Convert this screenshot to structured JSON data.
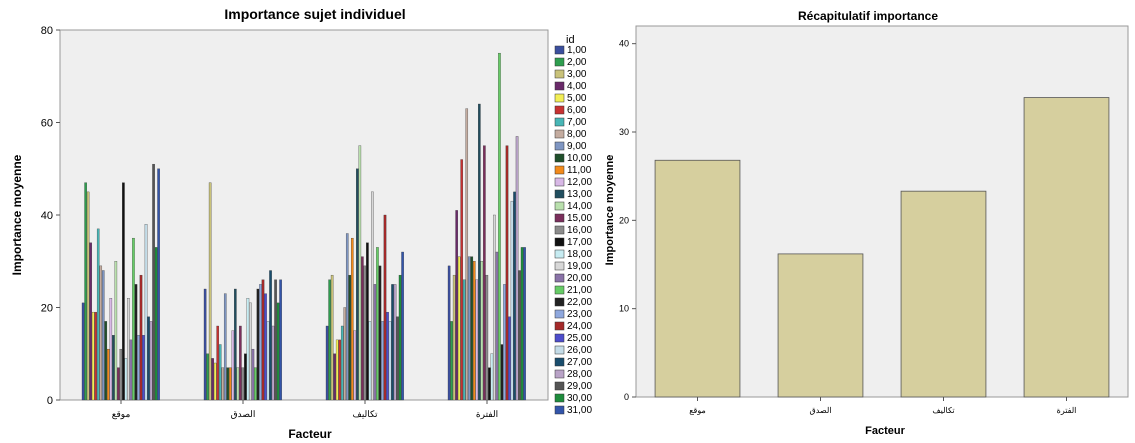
{
  "chart_data": [
    {
      "type": "bar",
      "title": "Importance sujet individuel",
      "xlabel": "Facteur",
      "ylabel": "Importance moyenne",
      "ylim": [
        0,
        80
      ],
      "yticks": [
        0,
        20,
        40,
        60,
        80
      ],
      "categories": [
        "موقع",
        "الصدق",
        "تكاليف",
        "الفترة"
      ],
      "legend_title": "id",
      "legend_position": "right",
      "grid": false,
      "series": [
        {
          "name": "1,00",
          "color": "#3b4f9e",
          "values": [
            21,
            24,
            16,
            29
          ]
        },
        {
          "name": "2,00",
          "color": "#2e9e4f",
          "values": [
            47,
            10,
            26,
            17
          ]
        },
        {
          "name": "3,00",
          "color": "#c9c27a",
          "values": [
            45,
            47,
            27,
            27
          ]
        },
        {
          "name": "4,00",
          "color": "#6a2a6a",
          "values": [
            34,
            9,
            10,
            41
          ]
        },
        {
          "name": "5,00",
          "color": "#f2ee55",
          "values": [
            19,
            8,
            13,
            31
          ]
        },
        {
          "name": "6,00",
          "color": "#c73131",
          "values": [
            19,
            16,
            13,
            52
          ]
        },
        {
          "name": "7,00",
          "color": "#48b6b6",
          "values": [
            37,
            12,
            16,
            26
          ]
        },
        {
          "name": "8,00",
          "color": "#c4aca0",
          "values": [
            29,
            7,
            20,
            63
          ]
        },
        {
          "name": "9,00",
          "color": "#7f96c2",
          "values": [
            28,
            23,
            36,
            31
          ]
        },
        {
          "name": "10,00",
          "color": "#1f4f2a",
          "values": [
            17,
            7,
            27,
            31
          ]
        },
        {
          "name": "11,00",
          "color": "#f28a1b",
          "values": [
            11,
            7,
            35,
            30
          ]
        },
        {
          "name": "12,00",
          "color": "#d8b8e6",
          "values": [
            22,
            15,
            15,
            26
          ]
        },
        {
          "name": "13,00",
          "color": "#214e5f",
          "values": [
            14,
            24,
            50,
            64
          ]
        },
        {
          "name": "14,00",
          "color": "#b9e0ad",
          "values": [
            30,
            7,
            55,
            30
          ]
        },
        {
          "name": "15,00",
          "color": "#7b2e5c",
          "values": [
            7,
            16,
            31,
            55
          ]
        },
        {
          "name": "16,00",
          "color": "#8c8c8c",
          "values": [
            11,
            7,
            29,
            27
          ]
        },
        {
          "name": "17,00",
          "color": "#111111",
          "values": [
            47,
            10,
            34,
            7
          ]
        },
        {
          "name": "18,00",
          "color": "#c7ecf2",
          "values": [
            9,
            22,
            17,
            10
          ]
        },
        {
          "name": "19,00",
          "color": "#d8d8d8",
          "values": [
            22,
            21,
            45,
            40
          ]
        },
        {
          "name": "20,00",
          "color": "#8a73a8",
          "values": [
            13,
            11,
            25,
            32
          ]
        },
        {
          "name": "21,00",
          "color": "#66cc66",
          "values": [
            35,
            7,
            33,
            75
          ]
        },
        {
          "name": "22,00",
          "color": "#222222",
          "values": [
            25,
            24,
            29,
            12
          ]
        },
        {
          "name": "23,00",
          "color": "#8fa8de",
          "values": [
            14,
            25,
            17,
            25
          ]
        },
        {
          "name": "24,00",
          "color": "#a52a2a",
          "values": [
            27,
            26,
            40,
            55
          ]
        },
        {
          "name": "25,00",
          "color": "#4d4dcc",
          "values": [
            14,
            23,
            19,
            18
          ]
        },
        {
          "name": "26,00",
          "color": "#c4dce8",
          "values": [
            38,
            17,
            17,
            43
          ]
        },
        {
          "name": "27,00",
          "color": "#194d6d",
          "values": [
            18,
            28,
            25,
            45
          ]
        },
        {
          "name": "28,00",
          "color": "#b9a3c7",
          "values": [
            17,
            16,
            25,
            57
          ]
        },
        {
          "name": "29,00",
          "color": "#555555",
          "values": [
            51,
            26,
            18,
            28
          ]
        },
        {
          "name": "30,00",
          "color": "#1e8c3c",
          "values": [
            33,
            21,
            27,
            33
          ]
        },
        {
          "name": "31,00",
          "color": "#3355aa",
          "values": [
            50,
            26,
            32,
            33
          ]
        }
      ]
    },
    {
      "type": "bar",
      "title": "Récapitulatif importance",
      "xlabel": "Facteur",
      "ylabel": "Importance moyenne",
      "ylim": [
        0,
        42
      ],
      "yticks": [
        0,
        10,
        20,
        30,
        40
      ],
      "categories": [
        "موقع",
        "الصدق",
        "تكاليف",
        "الفترة"
      ],
      "values": [
        26.8,
        16.2,
        23.3,
        33.9
      ],
      "bar_color": "#d6cf9e",
      "grid": false
    }
  ]
}
